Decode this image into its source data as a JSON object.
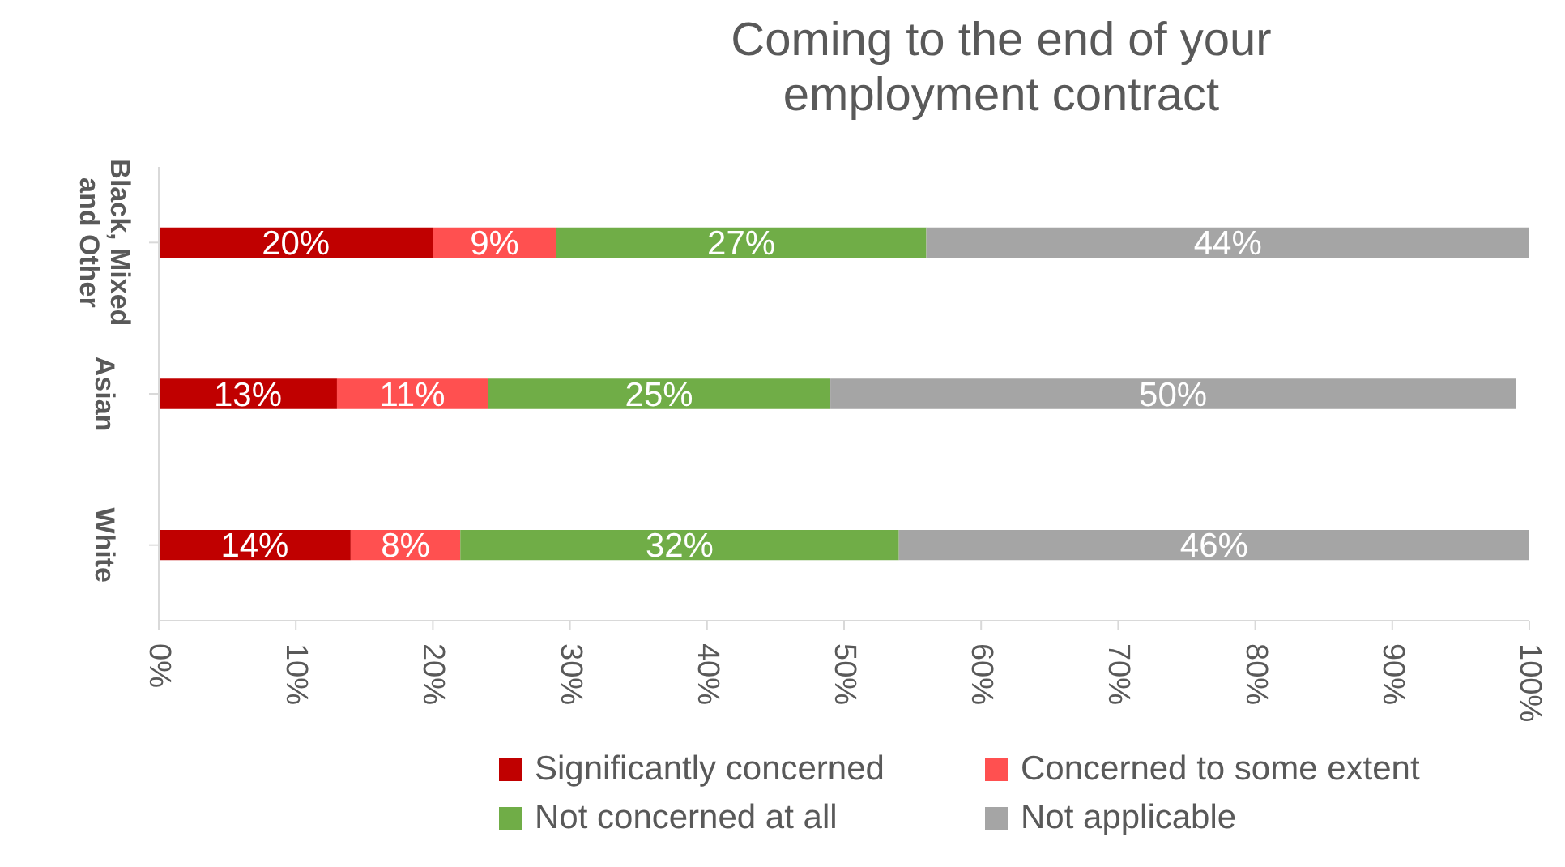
{
  "chart_data": {
    "type": "bar",
    "orientation": "horizontal",
    "stacked": true,
    "title": "Coming to the end of your employment contract",
    "categories": [
      "Black, Mixed and Other",
      "Asian",
      "White"
    ],
    "series": [
      {
        "name": "Significantly concerned",
        "color": "#c00000",
        "values": [
          20,
          13,
          14
        ],
        "value_labels": [
          "20%",
          "13%",
          "14%"
        ]
      },
      {
        "name": "Concerned to some extent",
        "color": "#ff5050",
        "values": [
          9,
          11,
          8
        ],
        "value_labels": [
          "9%",
          "11%",
          "8%"
        ]
      },
      {
        "name": "Not concerned at all",
        "color": "#70ad47",
        "values": [
          27,
          25,
          32
        ],
        "value_labels": [
          "27%",
          "25%",
          "32%"
        ]
      },
      {
        "name": "Not applicable",
        "color": "#a5a5a5",
        "values": [
          44,
          50,
          46
        ],
        "value_labels": [
          "44%",
          "50%",
          "46%"
        ]
      }
    ],
    "xlim": [
      0,
      100
    ],
    "xticks": [
      {
        "value": 0,
        "label": "0%"
      },
      {
        "value": 10,
        "label": "10%"
      },
      {
        "value": 20,
        "label": "20%"
      },
      {
        "value": 30,
        "label": "30%"
      },
      {
        "value": 40,
        "label": "40%"
      },
      {
        "value": 50,
        "label": "50%"
      },
      {
        "value": 60,
        "label": "60%"
      },
      {
        "value": 70,
        "label": "70%"
      },
      {
        "value": 80,
        "label": "80%"
      },
      {
        "value": 90,
        "label": "90%"
      },
      {
        "value": 100,
        "label": "100%"
      }
    ],
    "legend": "bottom",
    "grid": false
  }
}
